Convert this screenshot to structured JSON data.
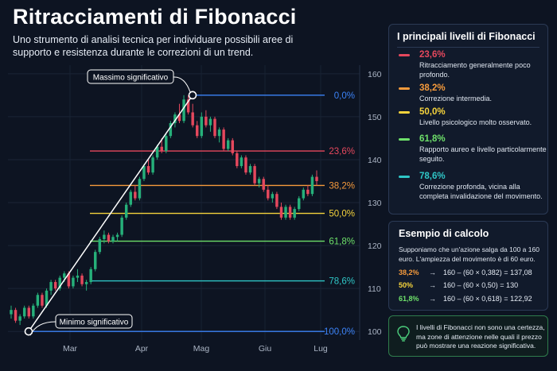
{
  "header": {
    "title": "Ritracciamenti di Fibonacci",
    "subtitle": "Uno strumento di analisi tecnica per individuare possibili aree di supporto e resistenza durante le correzioni di un trend."
  },
  "chart_data": {
    "type": "candlestick",
    "x_ticks": [
      "Mar",
      "Apr",
      "Mag",
      "Giu",
      "Lug"
    ],
    "y_ticks": [
      100,
      110,
      120,
      130,
      140,
      150,
      160
    ],
    "ylim": [
      98,
      162
    ],
    "swing_low": {
      "label": "Minimo significativo",
      "value": 100
    },
    "swing_high": {
      "label": "Massimo significativo",
      "value": 155
    },
    "levels": [
      {
        "label": "0,0%",
        "ratio": 0.0,
        "color": "#3b82f6"
      },
      {
        "label": "23,6%",
        "ratio": 0.236,
        "color": "#e5485d"
      },
      {
        "label": "38,2%",
        "ratio": 0.382,
        "color": "#f59a3c"
      },
      {
        "label": "50,0%",
        "ratio": 0.5,
        "color": "#f5d33c"
      },
      {
        "label": "61,8%",
        "ratio": 0.618,
        "color": "#6ee06a"
      },
      {
        "label": "78,6%",
        "ratio": 0.786,
        "color": "#2fc6c6"
      },
      {
        "label": "100,0%",
        "ratio": 1.0,
        "color": "#3b82f6"
      }
    ],
    "candles": [
      [
        104,
        106,
        103,
        105
      ],
      [
        105,
        105.5,
        102,
        102.5
      ],
      [
        102.5,
        104,
        101.5,
        103.5
      ],
      [
        103.5,
        106,
        103,
        105.5
      ],
      [
        105.5,
        106,
        103,
        103.5
      ],
      [
        103.5,
        106.5,
        103,
        106
      ],
      [
        106,
        109,
        105.5,
        108.5
      ],
      [
        108.5,
        109,
        105.5,
        106
      ],
      [
        106,
        110,
        105.5,
        109.5
      ],
      [
        109.5,
        112,
        108.5,
        111.5
      ],
      [
        111.5,
        112,
        109.5,
        110
      ],
      [
        110,
        113,
        109.5,
        112.5
      ],
      [
        112.5,
        114,
        111.5,
        113.5
      ],
      [
        113.5,
        114,
        110,
        110.5
      ],
      [
        110.5,
        113,
        110,
        112.5
      ],
      [
        112.5,
        114.5,
        111.5,
        113
      ],
      [
        113,
        113.5,
        110.5,
        111
      ],
      [
        111,
        112,
        109.5,
        111.5
      ],
      [
        111.5,
        115,
        111,
        114.5
      ],
      [
        114.5,
        119,
        114,
        118.5
      ],
      [
        118.5,
        122,
        118,
        121.5
      ],
      [
        121.5,
        123.5,
        120.5,
        122.5
      ],
      [
        122.5,
        123,
        120.5,
        121
      ],
      [
        121,
        122.5,
        120.5,
        122
      ],
      [
        122,
        123,
        121,
        122.5
      ],
      [
        122.5,
        127,
        122,
        126.5
      ],
      [
        126.5,
        130,
        126,
        129.5
      ],
      [
        129.5,
        133,
        129,
        132.5
      ],
      [
        132.5,
        134,
        130.5,
        131
      ],
      [
        131,
        136,
        130.5,
        135.5
      ],
      [
        135.5,
        139,
        135,
        138.5
      ],
      [
        138.5,
        140,
        136.5,
        137
      ],
      [
        137,
        141,
        136.5,
        140.5
      ],
      [
        140.5,
        143.5,
        140,
        143
      ],
      [
        143,
        145,
        141.5,
        142
      ],
      [
        142,
        146,
        141.5,
        145.5
      ],
      [
        145.5,
        149,
        145,
        148.5
      ],
      [
        148.5,
        151,
        147.5,
        150.5
      ],
      [
        150.5,
        153,
        148.5,
        149
      ],
      [
        149,
        155,
        148.5,
        154
      ],
      [
        154,
        155,
        150.5,
        151
      ],
      [
        151,
        153,
        147.5,
        148
      ],
      [
        148,
        149,
        145,
        145.5
      ],
      [
        145.5,
        151,
        145,
        150
      ],
      [
        150,
        151.5,
        147.5,
        148
      ],
      [
        148,
        150,
        146.5,
        149.5
      ],
      [
        149.5,
        150,
        145,
        145.5
      ],
      [
        145.5,
        147.5,
        144,
        147
      ],
      [
        147,
        147.5,
        142,
        142.5
      ],
      [
        142.5,
        145,
        142,
        144.5
      ],
      [
        144.5,
        145,
        141,
        141.5
      ],
      [
        141.5,
        142,
        138,
        138.5
      ],
      [
        138.5,
        141,
        138,
        140.5
      ],
      [
        140.5,
        141,
        136.5,
        137
      ],
      [
        137,
        139,
        136.5,
        138.5
      ],
      [
        138.5,
        139,
        134,
        134.5
      ],
      [
        134.5,
        136,
        133.5,
        135.5
      ],
      [
        135.5,
        136,
        132.5,
        133
      ],
      [
        133,
        134,
        130.5,
        131
      ],
      [
        131,
        132.5,
        130,
        132
      ],
      [
        132,
        132.5,
        128.5,
        129
      ],
      [
        129,
        130,
        126,
        126.5
      ],
      [
        126.5,
        129.5,
        126,
        129
      ],
      [
        129,
        129.5,
        126,
        126.5
      ],
      [
        126.5,
        129,
        126,
        128.5
      ],
      [
        128.5,
        131.5,
        128,
        131
      ],
      [
        131,
        133.5,
        130.5,
        133
      ],
      [
        133,
        134,
        131.5,
        132
      ],
      [
        132,
        136.5,
        131.5,
        136
      ],
      [
        136,
        137.5,
        134,
        135
      ]
    ]
  },
  "side_panel": {
    "title": "I principali livelli di Fibonacci",
    "levels": [
      {
        "pct": "23,6%",
        "color": "#e5485d",
        "desc": "Ritracciamento generalmente poco profondo."
      },
      {
        "pct": "38,2%",
        "color": "#f59a3c",
        "desc": "Correzione intermedia."
      },
      {
        "pct": "50,0%",
        "color": "#f5d33c",
        "desc": "Livello psicologico molto osservato."
      },
      {
        "pct": "61,8%",
        "color": "#6ee06a",
        "desc": "Rapporto aureo e livello particolarmente seguito."
      },
      {
        "pct": "78,6%",
        "color": "#2fc6c6",
        "desc": "Correzione profonda, vicina alla completa invalidazione del movimento."
      }
    ]
  },
  "calc_panel": {
    "title": "Esempio di calcolo",
    "intro": "Supponiamo che un'azione salga da 100 a 160 euro. L'ampiezza del movimento è di 60 euro.",
    "rows": [
      {
        "pct": "38,2%",
        "color": "#f59a3c",
        "formula": "160 – (60 × 0,382) = 137,08"
      },
      {
        "pct": "50%",
        "color": "#f5d33c",
        "formula": "160 – (60 × 0,50) = 130"
      },
      {
        "pct": "61,8%",
        "color": "#6ee06a",
        "formula": "160 – (60 × 0,618) = 122,92"
      }
    ],
    "arrow": "→"
  },
  "note": {
    "text": "I livelli di Fibonacci non sono una certezza, ma zone di attenzione nelle quali il prezzo può mostrare una reazione significativa.",
    "icon": "lightbulb-icon"
  }
}
